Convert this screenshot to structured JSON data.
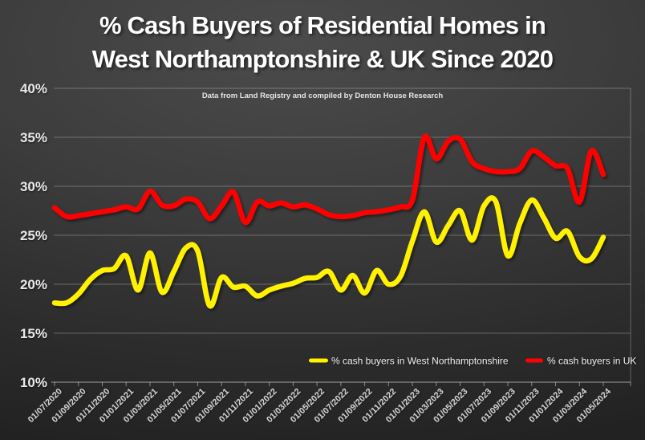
{
  "title": {
    "line1": "% Cash Buyers of Residential Homes in",
    "line2": "West Northamptonshire & UK Since 2020"
  },
  "subtitle": "Data from Land Registry and compiled by Denton House Research",
  "colors": {
    "background_dark": "#262626",
    "background_light": "#4a4a4a",
    "west_northamptonshire": "#fff100",
    "uk": "#fe0202",
    "gridline": "rgba(255,255,255,0.28)",
    "axis_line": "rgba(255,255,255,0.45)",
    "title_text": "#ffffff",
    "axis_text": "#e9e9e9"
  },
  "chart_data": {
    "type": "line",
    "title": "% Cash Buyers of Residential Homes in West Northamptonshire & UK Since 2020",
    "subtitle": "Data from Land Registry and compiled by Denton House Research",
    "x": [
      "01/07/2020",
      "01/08/2020",
      "01/09/2020",
      "01/10/2020",
      "01/11/2020",
      "01/12/2020",
      "01/01/2021",
      "01/02/2021",
      "01/03/2021",
      "01/04/2021",
      "01/05/2021",
      "01/06/2021",
      "01/07/2021",
      "01/08/2021",
      "01/09/2021",
      "01/10/2021",
      "01/11/2021",
      "01/12/2021",
      "01/01/2022",
      "01/02/2022",
      "01/03/2022",
      "01/04/2022",
      "01/05/2022",
      "01/06/2022",
      "01/07/2022",
      "01/08/2022",
      "01/09/2022",
      "01/10/2022",
      "01/11/2022",
      "01/12/2022",
      "01/01/2023",
      "01/02/2023",
      "01/03/2023",
      "01/04/2023",
      "01/05/2023",
      "01/06/2023",
      "01/07/2023",
      "01/08/2023",
      "01/09/2023",
      "01/10/2023",
      "01/11/2023",
      "01/12/2023",
      "01/01/2024",
      "01/02/2024",
      "01/03/2024",
      "01/04/2024",
      "01/05/2024"
    ],
    "x_tick_label_every": 2,
    "series": [
      {
        "name": "% cash buyers in West Northamptonshire",
        "color": "#fff100",
        "values": [
          18.1,
          18.1,
          19.0,
          20.5,
          21.4,
          21.6,
          22.9,
          19.4,
          23.2,
          19.2,
          21.3,
          23.7,
          23.4,
          17.8,
          20.7,
          19.7,
          19.8,
          18.8,
          19.4,
          19.8,
          20.1,
          20.6,
          20.7,
          21.3,
          19.4,
          20.9,
          19.1,
          21.4,
          20.0,
          20.8,
          24.4,
          27.4,
          24.3,
          26.0,
          27.5,
          24.5,
          28.0,
          28.4,
          22.9,
          26.2,
          28.6,
          26.8,
          24.7,
          25.4,
          22.8,
          22.6,
          24.8
        ]
      },
      {
        "name": "% cash buyers in UK",
        "color": "#fe0202",
        "values": [
          27.8,
          26.9,
          27.0,
          27.2,
          27.4,
          27.6,
          27.9,
          27.7,
          29.5,
          28.1,
          28.0,
          28.7,
          28.4,
          26.7,
          28.0,
          29.4,
          26.3,
          28.4,
          28.0,
          28.3,
          27.9,
          28.1,
          27.7,
          27.1,
          26.9,
          27.0,
          27.3,
          27.4,
          27.6,
          27.9,
          28.6,
          35.0,
          32.8,
          34.6,
          34.8,
          32.5,
          31.8,
          31.5,
          31.5,
          31.8,
          33.6,
          33.0,
          32.1,
          31.8,
          28.4,
          33.6,
          31.2
        ]
      }
    ],
    "xlabel": "",
    "ylabel": "",
    "ylim": [
      10,
      40
    ],
    "yticks": [
      10,
      15,
      20,
      25,
      30,
      35,
      40
    ],
    "ytick_format": "percent",
    "grid": "horizontal",
    "line_style": "smooth",
    "legend_position": "bottom-right-inside"
  }
}
